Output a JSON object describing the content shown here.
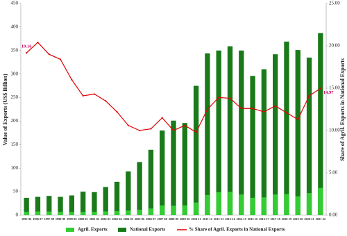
{
  "chart_data": {
    "type": "bar",
    "categories": [
      "1995-96",
      "1996-97",
      "1997-98",
      "1998-99",
      "1999-00",
      "2000-01",
      "2001-02",
      "2002-03",
      "2003-04",
      "2004-05",
      "2005-06",
      "2006-07",
      "2007-08",
      "2008-09",
      "2009-10",
      "2010-11",
      "2011-12",
      "2012-13",
      "2013-14",
      "2014-15",
      "2015-16",
      "2016-17",
      "2017-18",
      "2018-19",
      "2019-20",
      "2020-21",
      "2021-22"
    ],
    "series": [
      {
        "name": "Agril. Exports",
        "color": "#33cc33",
        "values": [
          7.1,
          8.0,
          7.8,
          7.2,
          6.7,
          7.1,
          7.0,
          8.1,
          8.7,
          9.9,
          11.3,
          14.2,
          20.7,
          20.1,
          20.8,
          27,
          43,
          48.7,
          49.5,
          44,
          37,
          38,
          44,
          45,
          40,
          47,
          58
        ]
      },
      {
        "name": "National Exports",
        "color": "#1a7a1a",
        "values": [
          37,
          39,
          41,
          39,
          42,
          50,
          49,
          60,
          71,
          93,
          113,
          139,
          180,
          201,
          196,
          275,
          344,
          350,
          359,
          350,
          296,
          310,
          342,
          369,
          351,
          335,
          387
        ]
      },
      {
        "name": "% Share of Agril. Exports in National Exports",
        "color": "#e00000",
        "axis": "y2",
        "values": [
          19.16,
          20.4,
          19.0,
          18.4,
          16.0,
          14.1,
          14.3,
          13.5,
          12.2,
          10.6,
          10.0,
          10.2,
          11.5,
          10.0,
          10.6,
          9.8,
          12.5,
          13.9,
          13.8,
          12.6,
          12.6,
          12.2,
          12.9,
          12.1,
          11.3,
          14.1,
          14.97
        ]
      }
    ],
    "y_label": "Value of Exports (US$ Billion)",
    "y2_label": "Share of Agril. Exports in National Exports",
    "ylim": [
      0,
      450
    ],
    "yticks": [
      0,
      50,
      100,
      150,
      200,
      250,
      300,
      350,
      400,
      450
    ],
    "y2lim": [
      0,
      25
    ],
    "y2ticks": [
      {
        "value": 0,
        "label": "0.00"
      },
      {
        "value": 5,
        "label": "5.00"
      },
      {
        "value": 10,
        "label": "10.00"
      },
      {
        "value": 15,
        "label": "15.00"
      },
      {
        "value": 20,
        "label": "20.00"
      },
      {
        "value": 25,
        "label": "25.00"
      }
    ],
    "grid": false
  }
}
